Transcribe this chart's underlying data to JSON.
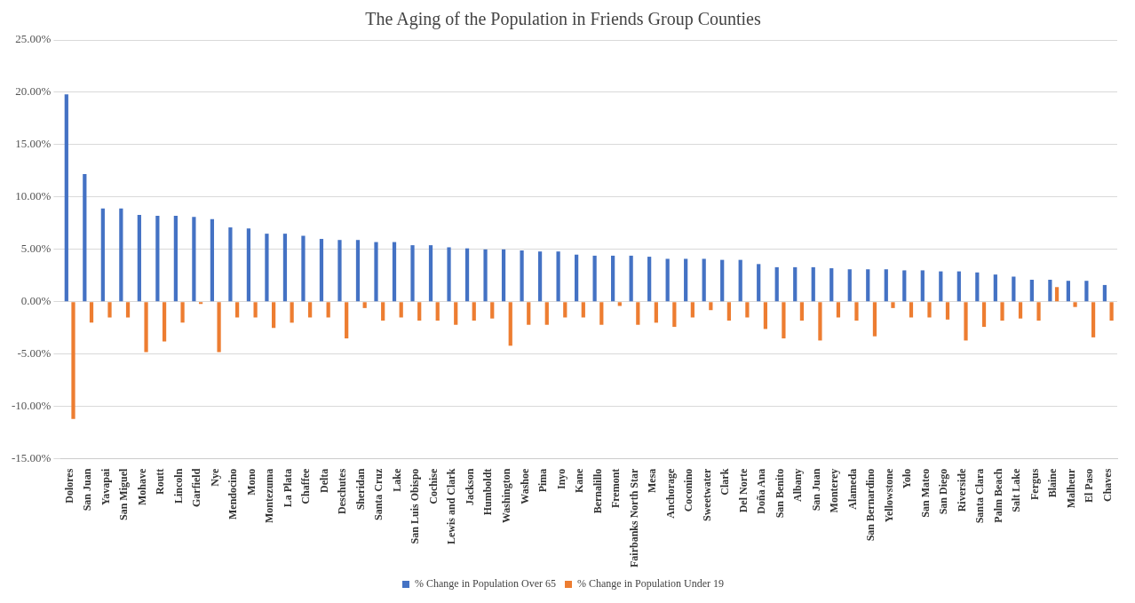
{
  "chart_data": {
    "type": "bar",
    "title": "The Aging of the Population in Friends Group Counties",
    "categories": [
      "Dolores",
      "San Juan",
      "Yavapai",
      "San Miguel",
      "Mohave",
      "Routt",
      "Lincoln",
      "Garfield",
      "Nye",
      "Mendocino",
      "Mono",
      "Montezuma",
      "La Plata",
      "Chaffee",
      "Delta",
      "Deschutes",
      "Sheridan",
      "Santa Cruz",
      "Lake",
      "San Luis Obispo",
      "Cochise",
      "Lewis and Clark",
      "Jackson",
      "Humboldt",
      "Washington",
      "Washoe",
      "Pima",
      "Inyo",
      "Kane",
      "Bernalillo",
      "Fremont",
      "Fairbanks North Star",
      "Mesa",
      "Anchorage",
      "Coconino",
      "Sweetwater",
      "Clark",
      "Del Norte",
      "Doña Ana",
      "San Benito",
      "Albany",
      "San Juan",
      "Monterey",
      "Alameda",
      "San Bernardino",
      "Yellowstone",
      "Yolo",
      "San Mateo",
      "San Diego",
      "Riverside",
      "Santa Clara",
      "Palm Beach",
      "Salt Lake",
      "Fergus",
      "Blaine",
      "Malheur",
      "El Paso",
      "Chaves"
    ],
    "series": [
      {
        "name": "% Change in Population Over 65",
        "color": "#4472c4",
        "values": [
          19.8,
          12.2,
          8.9,
          8.9,
          8.3,
          8.2,
          8.2,
          8.1,
          7.9,
          7.1,
          7.0,
          6.5,
          6.5,
          6.3,
          6.0,
          5.9,
          5.9,
          5.7,
          5.7,
          5.4,
          5.4,
          5.2,
          5.1,
          5.0,
          5.0,
          4.9,
          4.8,
          4.8,
          4.5,
          4.4,
          4.4,
          4.4,
          4.3,
          4.1,
          4.1,
          4.1,
          4.0,
          4.0,
          3.6,
          3.3,
          3.3,
          3.3,
          3.2,
          3.1,
          3.1,
          3.1,
          3.0,
          3.0,
          2.9,
          2.9,
          2.8,
          2.6,
          2.4,
          2.1,
          2.1,
          2.0,
          2.0,
          1.6
        ]
      },
      {
        "name": "% Change in Population Under 19",
        "color": "#ed7d31",
        "values": [
          -11.2,
          -2.0,
          -1.5,
          -1.5,
          -4.8,
          -3.8,
          -2.0,
          -0.2,
          -4.8,
          -1.5,
          -1.5,
          -2.5,
          -2.0,
          -1.5,
          -1.5,
          -3.5,
          -0.6,
          -1.8,
          -1.5,
          -1.8,
          -1.8,
          -2.2,
          -1.8,
          -1.6,
          -4.2,
          -2.2,
          -2.2,
          -1.5,
          -1.5,
          -2.2,
          -0.4,
          -2.2,
          -2.0,
          -2.4,
          -1.5,
          -0.8,
          -1.8,
          -1.5,
          -2.6,
          -3.5,
          -1.8,
          -3.7,
          -1.5,
          -1.8,
          -3.3,
          -0.6,
          -1.5,
          -1.5,
          -1.7,
          -3.7,
          -2.4,
          -1.8,
          -1.6,
          -1.8,
          1.4,
          -0.5,
          -3.4,
          -1.8
        ]
      }
    ],
    "ylim": [
      -15,
      25
    ],
    "yticks": [
      {
        "value": -15,
        "label": "-15.00%"
      },
      {
        "value": -10,
        "label": "-10.00%"
      },
      {
        "value": -5,
        "label": "-5.00%"
      },
      {
        "value": 0,
        "label": "0.00%"
      },
      {
        "value": 5,
        "label": "5.00%"
      },
      {
        "value": 10,
        "label": "10.00%"
      },
      {
        "value": 15,
        "label": "15.00%"
      },
      {
        "value": 20,
        "label": "20.00%"
      },
      {
        "value": 25,
        "label": "25.00%"
      }
    ],
    "grid": "y",
    "legend": "bottom"
  }
}
